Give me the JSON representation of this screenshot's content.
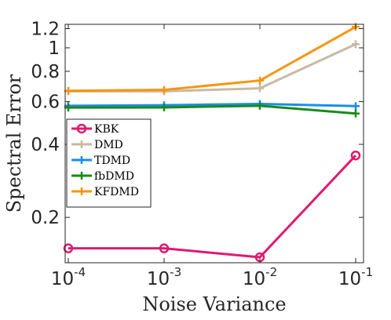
{
  "chart_data": {
    "type": "line",
    "title": "",
    "xlabel": "Noise Variance",
    "ylabel": "Spectral Error",
    "xscale": "log",
    "yscale": "log",
    "xlim": [
      0.0001,
      0.1
    ],
    "ylim": [
      0.13,
      1.25
    ],
    "x": [
      0.0001,
      0.001,
      0.01,
      0.1
    ],
    "x_tick_labels": [
      {
        "base": "10",
        "exp": "-4"
      },
      {
        "base": "10",
        "exp": "-3"
      },
      {
        "base": "10",
        "exp": "-2"
      },
      {
        "base": "10",
        "exp": "-1"
      }
    ],
    "y_ticks": [
      0.2,
      0.4,
      0.6,
      0.8,
      1,
      1.2
    ],
    "y_tick_labels": [
      "0.2",
      "0.4",
      "0.6",
      "0.8",
      "1",
      "1.2"
    ],
    "grid": false,
    "legend_position": "middle-left",
    "series": [
      {
        "name": "KBK",
        "color": "#e01a6e",
        "marker": "circle",
        "values": [
          0.149,
          0.149,
          0.137,
          0.36
        ]
      },
      {
        "name": "DMD",
        "color": "#c8b9a5",
        "marker": "plus",
        "values": [
          0.662,
          0.662,
          0.681,
          1.035
        ]
      },
      {
        "name": "TDMD",
        "color": "#1a8ee8",
        "marker": "plus",
        "values": [
          0.577,
          0.58,
          0.587,
          0.575
        ]
      },
      {
        "name": "fbDMD",
        "color": "#1a8a1a",
        "marker": "plus",
        "values": [
          0.567,
          0.568,
          0.577,
          0.536
        ]
      },
      {
        "name": "KFDMD",
        "color": "#f5960f",
        "marker": "plus",
        "values": [
          0.665,
          0.671,
          0.733,
          1.22
        ]
      }
    ]
  }
}
